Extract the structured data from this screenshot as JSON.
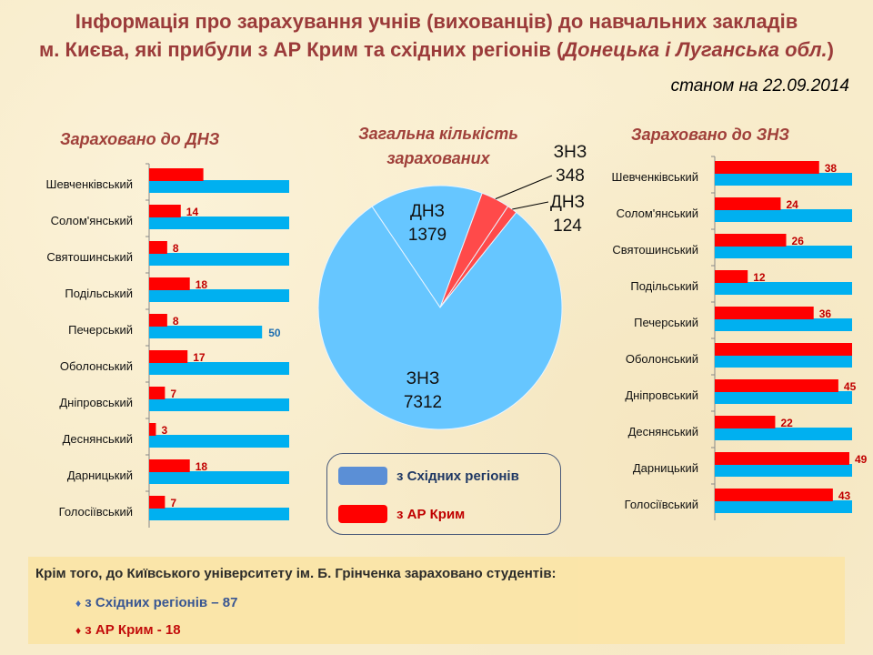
{
  "header": {
    "title_line1": "Інформація про зарахування учнів (вихованців) до навчальних закладів",
    "title_line2_a": "м. Києва, які прибули з АР Крим та східних регіонів (",
    "title_line2_b": "Донецька і Луганська обл.",
    "title_line2_c": ")",
    "date": "станом на 22.09.2014"
  },
  "colors": {
    "east": "#00b0f0",
    "crimea": "#ff0000",
    "title": "#9b3b3a"
  },
  "chart_data": [
    {
      "type": "bar",
      "title": "Зараховано до ДНЗ",
      "categories": [
        "Шевченківський",
        "Солом'янський",
        "Святошинський",
        "Подільський",
        "Печерський",
        "Оболонський",
        "Дніпровський",
        "Деснянський",
        "Дарницький",
        "Голосіївський"
      ],
      "xlim": [
        0,
        62
      ],
      "series": [
        {
          "name": "з АР Крим",
          "values": [
            24,
            14,
            8,
            18,
            8,
            17,
            7,
            3,
            18,
            7
          ],
          "labels": [
            "",
            "14",
            "8",
            "18",
            "8",
            "17",
            "7",
            "3",
            "18",
            "7"
          ]
        },
        {
          "name": "з Східних регіонів",
          "values": [
            62,
            62,
            62,
            62,
            50,
            62,
            62,
            62,
            62,
            62
          ],
          "labels": [
            "",
            "",
            "",
            "",
            "50",
            "",
            "",
            "",
            "",
            ""
          ]
        }
      ]
    },
    {
      "type": "pie",
      "title": "Загальна кількість зарахованих",
      "slices": [
        {
          "label": "ДНЗ",
          "value": 1379,
          "series": "з Східних регіонів"
        },
        {
          "label": "ЗНЗ",
          "value": 348,
          "series": "з АР Крим"
        },
        {
          "label": "ДНЗ",
          "value": 124,
          "series": "з АР Крим"
        },
        {
          "label": "ЗНЗ",
          "value": 7312,
          "series": "з Східних регіонів"
        }
      ]
    },
    {
      "type": "bar",
      "title": "Зараховано до ЗНЗ",
      "categories": [
        "Шевченківський",
        "Солом'янський",
        "Святошинський",
        "Подільський",
        "Печерський",
        "Оболонський",
        "Дніпровський",
        "Деснянський",
        "Дарницький",
        "Голосіївський"
      ],
      "xlim": [
        0,
        50
      ],
      "series": [
        {
          "name": "з АР Крим",
          "values": [
            38,
            24,
            26,
            12,
            36,
            50,
            45,
            22,
            49,
            43
          ],
          "labels": [
            "38",
            "24",
            "26",
            "12",
            "36",
            "",
            "45",
            "22",
            "49",
            "43"
          ]
        },
        {
          "name": "з Східних регіонів",
          "values": [
            50,
            50,
            50,
            50,
            50,
            50,
            50,
            50,
            50,
            50
          ],
          "labels": [
            "",
            "",
            "",
            "",
            "",
            "",
            "",
            "",
            "",
            ""
          ]
        }
      ]
    }
  ],
  "legend": {
    "east": "з Східних регіонів",
    "crimea": "з АР Крим"
  },
  "note": {
    "heading": "Крім того, до Київського університету ім. Б. Грінченка зараховано студентів:",
    "east": "з Східних регіонів – 87",
    "crimea": "з АР Крим  - 18",
    "bullet": "♦"
  }
}
